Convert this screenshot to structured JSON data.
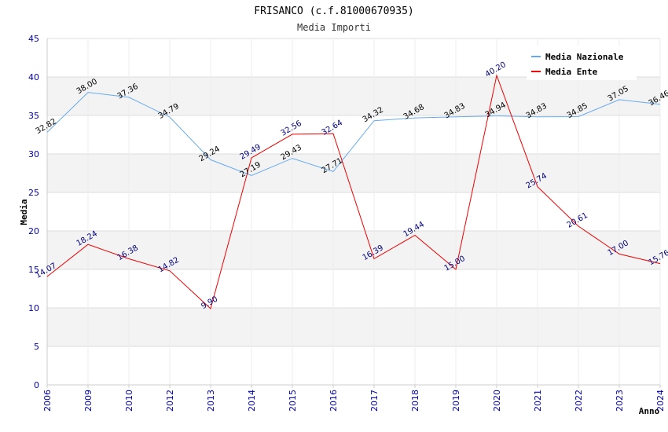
{
  "chart_data": {
    "type": "line",
    "title": "FRISANCO (c.f.81000670935)",
    "subtitle": "Media Importi",
    "xlabel": "Anno",
    "ylabel": "Media",
    "ylim": [
      0,
      45
    ],
    "yticks": [
      "0",
      "5",
      "10",
      "15",
      "20",
      "25",
      "30",
      "35",
      "40",
      "45"
    ],
    "categories": [
      "2006",
      "2009",
      "2010",
      "2012",
      "2013",
      "2014",
      "2015",
      "2016",
      "2017",
      "2018",
      "2019",
      "2020",
      "2021",
      "2022",
      "2023",
      "2024"
    ],
    "series": [
      {
        "name": "Media Nazionale",
        "color": "#66aaee",
        "values": [
          32.82,
          38.0,
          37.36,
          34.79,
          29.24,
          27.19,
          29.43,
          27.71,
          34.32,
          34.68,
          34.83,
          34.94,
          34.83,
          34.85,
          37.05,
          36.46
        ],
        "labels": [
          "32.82",
          "38.00",
          "37.36",
          "34.79",
          "29.24",
          "27.19",
          "29.43",
          "27.71",
          "34.32",
          "34.68",
          "34.83",
          "34.94",
          "34.83",
          "34.85",
          "37.05",
          "36.46"
        ]
      },
      {
        "name": "Media Ente",
        "color": "#ee0000",
        "values": [
          14.07,
          18.24,
          16.38,
          14.82,
          9.9,
          29.49,
          32.56,
          32.64,
          16.39,
          19.44,
          15.0,
          40.2,
          25.74,
          20.61,
          17.0,
          15.76
        ],
        "labels": [
          "14.07",
          "18.24",
          "16.38",
          "14.82",
          "9.90",
          "29.49",
          "32.56",
          "32.64",
          "16.39",
          "19.44",
          "15.00",
          "40.20",
          "25.74",
          "20.61",
          "17.00",
          "15.76"
        ]
      }
    ],
    "grid": true,
    "legend_position": "top-right"
  }
}
